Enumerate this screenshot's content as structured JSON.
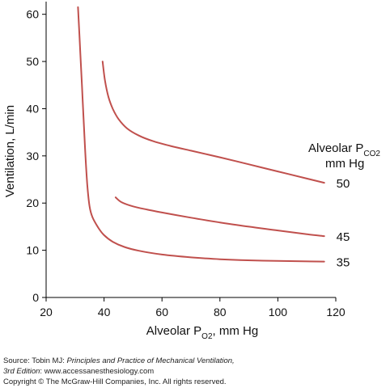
{
  "chart_data": {
    "type": "line",
    "xlabel_main": "Alveolar P",
    "xlabel_sub": "O2",
    "xlabel_tail": ", mm Hg",
    "ylabel": "Ventilation, L/min",
    "xlim": [
      20,
      120
    ],
    "ylim": [
      0,
      62
    ],
    "xticks": [
      20,
      40,
      60,
      80,
      100,
      120
    ],
    "yticks": [
      0,
      10,
      20,
      30,
      40,
      50,
      60
    ],
    "legend_title_main": "Alveolar P",
    "legend_title_sub": "CO2",
    "legend_title_line2": "mm Hg",
    "line_color": "#c0504d",
    "series": [
      {
        "name": "35",
        "points": [
          [
            31,
            61.5
          ],
          [
            31.8,
            52
          ],
          [
            32.6,
            42
          ],
          [
            33.4,
            32
          ],
          [
            34.2,
            24
          ],
          [
            35,
            19.3
          ],
          [
            36,
            17
          ],
          [
            38,
            14.8
          ],
          [
            40,
            13.2
          ],
          [
            43,
            11.8
          ],
          [
            47,
            10.7
          ],
          [
            52,
            9.9
          ],
          [
            60,
            9.1
          ],
          [
            70,
            8.5
          ],
          [
            80,
            8.1
          ],
          [
            95,
            7.8
          ],
          [
            116,
            7.6
          ]
        ]
      },
      {
        "name": "45",
        "points": [
          [
            44,
            21.2
          ],
          [
            46,
            20.2
          ],
          [
            50,
            19.3
          ],
          [
            55,
            18.6
          ],
          [
            60,
            18
          ],
          [
            70,
            16.9
          ],
          [
            80,
            15.9
          ],
          [
            90,
            15
          ],
          [
            100,
            14.2
          ],
          [
            110,
            13.4
          ],
          [
            116,
            13
          ]
        ]
      },
      {
        "name": "50",
        "points": [
          [
            39.5,
            50
          ],
          [
            40.3,
            46
          ],
          [
            41.5,
            42.5
          ],
          [
            43,
            40
          ],
          [
            45,
            37.8
          ],
          [
            48,
            35.8
          ],
          [
            52,
            34.3
          ],
          [
            57,
            33.1
          ],
          [
            63,
            32.1
          ],
          [
            70,
            31.1
          ],
          [
            80,
            29.7
          ],
          [
            90,
            28.2
          ],
          [
            100,
            26.7
          ],
          [
            110,
            25.2
          ],
          [
            116,
            24.3
          ]
        ]
      }
    ]
  },
  "footer": {
    "source_prefix": "Source: Tobin MJ: ",
    "source_title": "Principles and Practice of Mechanical Ventilation,",
    "edition": "3rd Edition",
    "source_suffix": ": www.accessanesthesiology.com",
    "copyright": "Copyright © The McGraw-Hill Companies, Inc. All rights reserved."
  }
}
